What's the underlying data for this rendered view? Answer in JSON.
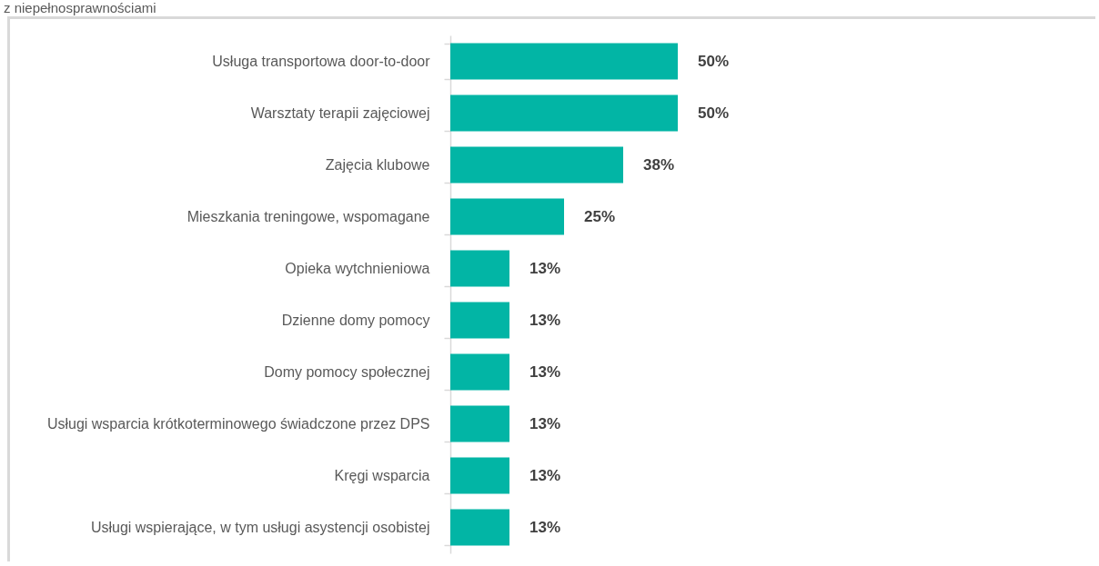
{
  "chart_data": {
    "type": "bar",
    "orientation": "horizontal",
    "title": "z niepełnosprawnościami",
    "categories": [
      "Usługa transportowa door-to-door",
      "Warsztaty terapii zajęciowej",
      "Zajęcia klubowe",
      "Mieszkania treningowe, wspomagane",
      "Opieka wytchnieniowa",
      "Dzienne domy pomocy",
      "Domy pomocy społecznej",
      "Usługi wsparcia krótkoterminowego świadczone przez DPS",
      "Kręgi wsparcia",
      "Usługi wspierające, w tym usługi asystencji osobistej"
    ],
    "values": [
      50,
      50,
      38,
      25,
      13,
      13,
      13,
      13,
      13,
      13
    ],
    "value_labels": [
      "50%",
      "50%",
      "38%",
      "25%",
      "13%",
      "13%",
      "13%",
      "13%",
      "13%",
      "13%"
    ],
    "color": "#02b5a5"
  }
}
